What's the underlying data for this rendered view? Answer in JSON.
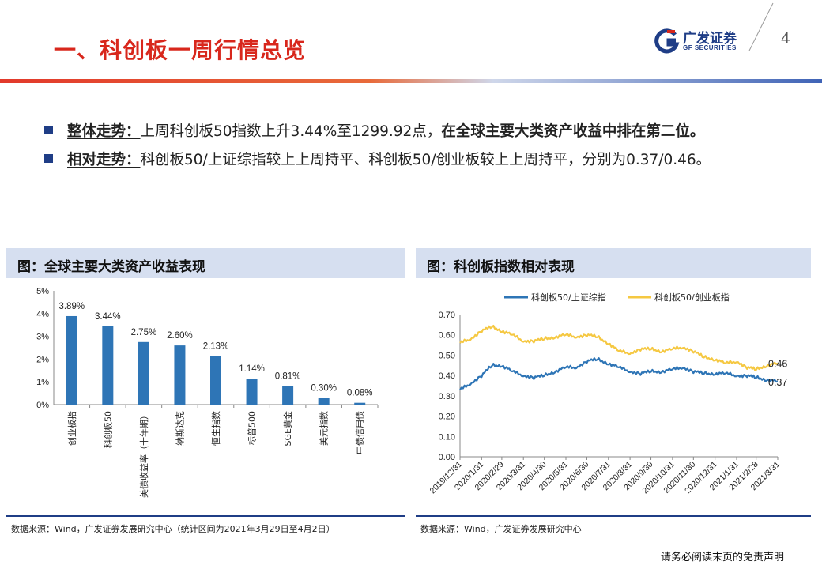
{
  "header": {
    "title": "一、科创板一周行情总览",
    "logo_cn": "广发证券",
    "logo_en": "GF SECURITIES",
    "page_number": "4"
  },
  "bullets": [
    {
      "key": "整体走势：",
      "text": "上周科创板50指数上升3.44%至1299.92点，",
      "bold_text": "在全球主要大类资产收益中排在第二位。"
    },
    {
      "key": "相对走势：",
      "text": "科创板50/上证综指较上上周持平、科创板50/创业板较上上周持平，分别为0.37/0.46。",
      "bold_text": ""
    }
  ],
  "left_panel": {
    "title": "图：全球主要大类资产收益表现",
    "source": "数据来源：Wind，广发证券发展研究中心（统计区间为2021年3月29日至4月2日）"
  },
  "right_panel": {
    "title": "图：科创板指数相对表现",
    "source": "数据来源：Wind，广发证券发展研究中心"
  },
  "disclaimer": "请务必阅读末页的免责声明",
  "colors": {
    "brand_red": "#d8271c",
    "brand_blue": "#1f3d86",
    "bar": "#2e75b6",
    "line1": "#2e75b6",
    "line2": "#f5c842"
  },
  "chart_data": [
    {
      "type": "bar",
      "categories": [
        "创业板指",
        "科创板50",
        "美债收益率（十年期）",
        "纳斯达克",
        "恒生指数",
        "标普500",
        "SGE黄金",
        "美元指数",
        "中债信用债"
      ],
      "values": [
        3.89,
        3.44,
        2.75,
        2.6,
        2.13,
        1.14,
        0.81,
        0.3,
        0.08
      ],
      "value_labels": [
        "3.89%",
        "3.44%",
        "2.75%",
        "2.60%",
        "2.13%",
        "1.14%",
        "0.81%",
        "0.30%",
        "0.08%"
      ],
      "yticks": [
        "0%",
        "1%",
        "2%",
        "3%",
        "4%",
        "5%"
      ],
      "ylim": [
        0,
        5
      ]
    },
    {
      "type": "line",
      "x_ticks": [
        "2019/12/31",
        "2020/1/31",
        "2020/2/29",
        "2020/3/31",
        "2020/4/30",
        "2020/5/31",
        "2020/6/30",
        "2020/7/31",
        "2020/8/31",
        "2020/9/30",
        "2020/10/31",
        "2020/11/30",
        "2020/12/31",
        "2021/1/31",
        "2021/2/28",
        "2021/3/31"
      ],
      "yticks": [
        "0.00",
        "0.10",
        "0.20",
        "0.30",
        "0.40",
        "0.50",
        "0.60",
        "0.70"
      ],
      "ylim": [
        0,
        0.7
      ],
      "series": [
        {
          "name": "科创板50/上证综指",
          "end_label": "0.37",
          "x": [
            "2019/12/31",
            "2020/1/15",
            "2020/1/31",
            "2020/2/15",
            "2020/2/29",
            "2020/3/15",
            "2020/3/31",
            "2020/4/15",
            "2020/4/30",
            "2020/5/15",
            "2020/5/31",
            "2020/6/15",
            "2020/6/30",
            "2020/7/15",
            "2020/7/31",
            "2020/8/15",
            "2020/8/31",
            "2020/9/15",
            "2020/9/30",
            "2020/10/15",
            "2020/10/31",
            "2020/11/15",
            "2020/11/30",
            "2020/12/15",
            "2020/12/31",
            "2021/1/15",
            "2021/1/31",
            "2021/2/15",
            "2021/2/28",
            "2021/3/15",
            "2021/3/31"
          ],
          "values": [
            0.33,
            0.36,
            0.4,
            0.45,
            0.45,
            0.42,
            0.4,
            0.39,
            0.4,
            0.42,
            0.44,
            0.44,
            0.47,
            0.48,
            0.46,
            0.44,
            0.42,
            0.41,
            0.42,
            0.42,
            0.43,
            0.44,
            0.42,
            0.41,
            0.41,
            0.41,
            0.4,
            0.4,
            0.39,
            0.38,
            0.37
          ]
        },
        {
          "name": "科创板50/创业板指",
          "end_label": "0.46",
          "x": [
            "2019/12/31",
            "2020/1/15",
            "2020/1/31",
            "2020/2/15",
            "2020/2/29",
            "2020/3/15",
            "2020/3/31",
            "2020/4/15",
            "2020/4/30",
            "2020/5/15",
            "2020/5/31",
            "2020/6/15",
            "2020/6/30",
            "2020/7/15",
            "2020/7/31",
            "2020/8/15",
            "2020/8/31",
            "2020/9/15",
            "2020/9/30",
            "2020/10/15",
            "2020/10/31",
            "2020/11/15",
            "2020/11/30",
            "2020/12/15",
            "2020/12/31",
            "2021/1/15",
            "2021/1/31",
            "2021/2/15",
            "2021/2/28",
            "2021/3/15",
            "2021/3/31"
          ],
          "values": [
            0.56,
            0.58,
            0.62,
            0.64,
            0.62,
            0.6,
            0.57,
            0.57,
            0.58,
            0.59,
            0.6,
            0.59,
            0.6,
            0.59,
            0.56,
            0.52,
            0.51,
            0.53,
            0.53,
            0.52,
            0.53,
            0.54,
            0.52,
            0.49,
            0.48,
            0.46,
            0.47,
            0.44,
            0.43,
            0.45,
            0.46
          ]
        }
      ]
    }
  ]
}
